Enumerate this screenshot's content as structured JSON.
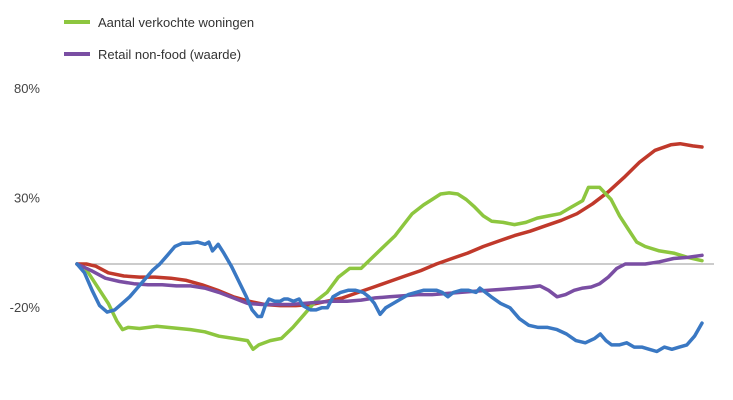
{
  "chart_data": {
    "type": "line",
    "title": "",
    "xlabel": "",
    "ylabel": "",
    "ylim": [
      -30,
      80
    ],
    "y_ticks": [
      {
        "value": 80,
        "label": "80%"
      },
      {
        "value": 30,
        "label": "30%"
      },
      {
        "value": -20,
        "label": "-20%"
      }
    ],
    "zero_line": true,
    "grid": false,
    "legend_position": "top-left",
    "x_count": 125,
    "series": [
      {
        "name": "",
        "color": "#c0392b",
        "legend_partial": true,
        "points": [
          [
            0,
            0
          ],
          [
            3,
            0
          ],
          [
            6,
            -1
          ],
          [
            10,
            -4
          ],
          [
            15,
            -5.5
          ],
          [
            20,
            -6
          ],
          [
            25,
            -6
          ],
          [
            30,
            -6.5
          ],
          [
            35,
            -7.5
          ],
          [
            40,
            -9.5
          ],
          [
            45,
            -12
          ],
          [
            50,
            -15
          ],
          [
            55,
            -17
          ],
          [
            60,
            -18.5
          ],
          [
            65,
            -19
          ],
          [
            70,
            -19
          ],
          [
            75,
            -18.5
          ],
          [
            80,
            -17
          ],
          [
            85,
            -15.5
          ],
          [
            90,
            -13
          ],
          [
            95,
            -10.5
          ],
          [
            100,
            -8
          ],
          [
            105,
            -5.5
          ],
          [
            110,
            -3
          ],
          [
            115,
            0
          ],
          [
            120,
            2.5
          ],
          [
            125,
            5
          ],
          [
            130,
            8
          ],
          [
            135,
            10.5
          ],
          [
            140,
            13
          ],
          [
            145,
            15
          ],
          [
            150,
            17.5
          ],
          [
            155,
            20
          ],
          [
            160,
            23
          ],
          [
            165,
            27.5
          ],
          [
            170,
            33
          ],
          [
            175,
            39.5
          ],
          [
            180,
            46.5
          ],
          [
            185,
            52
          ],
          [
            190,
            54.5
          ],
          [
            193,
            55
          ],
          [
            197,
            54
          ],
          [
            200,
            53.5
          ]
        ]
      },
      {
        "name": "Aantal verkochte woningen",
        "color": "#8dc63f",
        "points": [
          [
            0,
            0
          ],
          [
            3,
            -2
          ],
          [
            7,
            -10
          ],
          [
            11,
            -18
          ],
          [
            14,
            -26
          ],
          [
            16,
            -30
          ],
          [
            18,
            -29
          ],
          [
            22,
            -29.5
          ],
          [
            28,
            -28.5
          ],
          [
            32,
            -29
          ],
          [
            36,
            -29.5
          ],
          [
            40,
            -30
          ],
          [
            45,
            -31
          ],
          [
            50,
            -33
          ],
          [
            55,
            -34
          ],
          [
            60,
            -35
          ],
          [
            62,
            -39
          ],
          [
            64,
            -37
          ],
          [
            68,
            -35
          ],
          [
            72,
            -34
          ],
          [
            76,
            -29
          ],
          [
            80,
            -23
          ],
          [
            84,
            -17
          ],
          [
            88,
            -13
          ],
          [
            92,
            -6
          ],
          [
            96,
            -2
          ],
          [
            100,
            -2
          ],
          [
            104,
            3
          ],
          [
            108,
            8
          ],
          [
            112,
            13
          ],
          [
            115,
            18
          ],
          [
            118,
            23
          ],
          [
            122,
            27
          ],
          [
            125,
            29.5
          ],
          [
            128,
            32
          ],
          [
            131,
            32.5
          ],
          [
            134,
            32
          ],
          [
            137,
            29.5
          ],
          [
            140,
            26
          ],
          [
            143,
            22
          ],
          [
            146,
            19.5
          ],
          [
            150,
            19
          ],
          [
            154,
            18
          ],
          [
            158,
            19
          ],
          [
            162,
            21
          ],
          [
            166,
            22
          ],
          [
            170,
            23
          ],
          [
            174,
            26
          ],
          [
            178,
            29
          ],
          [
            180,
            35
          ],
          [
            184,
            35
          ],
          [
            188,
            29.5
          ],
          [
            191,
            22
          ],
          [
            194,
            16
          ],
          [
            197,
            10
          ],
          [
            200,
            8
          ],
          [
            205,
            6
          ],
          [
            210,
            5
          ],
          [
            215,
            3
          ],
          [
            220,
            1.5
          ]
        ]
      },
      {
        "name": "Retail non-food (waarde)",
        "color": "#7a4ea3",
        "points": [
          [
            0,
            0
          ],
          [
            5,
            -3
          ],
          [
            10,
            -6.5
          ],
          [
            15,
            -8
          ],
          [
            20,
            -9
          ],
          [
            25,
            -9.5
          ],
          [
            30,
            -9.5
          ],
          [
            35,
            -10
          ],
          [
            40,
            -10
          ],
          [
            45,
            -11
          ],
          [
            50,
            -13
          ],
          [
            55,
            -15.5
          ],
          [
            60,
            -18
          ],
          [
            65,
            -18.5
          ],
          [
            70,
            -18.5
          ],
          [
            75,
            -18.5
          ],
          [
            80,
            -18
          ],
          [
            85,
            -17.5
          ],
          [
            90,
            -17
          ],
          [
            95,
            -17
          ],
          [
            100,
            -16.5
          ],
          [
            105,
            -15.5
          ],
          [
            110,
            -15
          ],
          [
            115,
            -14.5
          ],
          [
            120,
            -14
          ],
          [
            125,
            -14
          ],
          [
            130,
            -13.5
          ],
          [
            135,
            -13
          ],
          [
            140,
            -12.5
          ],
          [
            145,
            -12
          ],
          [
            150,
            -11.5
          ],
          [
            155,
            -11
          ],
          [
            160,
            -10.5
          ],
          [
            163,
            -10
          ],
          [
            166,
            -12
          ],
          [
            169,
            -15
          ],
          [
            172,
            -14
          ],
          [
            175,
            -12
          ],
          [
            178,
            -11
          ],
          [
            181,
            -10.5
          ],
          [
            184,
            -9
          ],
          [
            187,
            -6
          ],
          [
            190,
            -2
          ],
          [
            193,
            0
          ],
          [
            196,
            0
          ],
          [
            200,
            0
          ],
          [
            205,
            1
          ],
          [
            210,
            2.5
          ],
          [
            215,
            3
          ],
          [
            220,
            4
          ]
        ]
      },
      {
        "name": "",
        "color": "#3a78c3",
        "points": [
          [
            0,
            0
          ],
          [
            4,
            -4
          ],
          [
            8,
            -12
          ],
          [
            12,
            -19
          ],
          [
            16,
            -22
          ],
          [
            20,
            -21
          ],
          [
            24,
            -18
          ],
          [
            28,
            -15
          ],
          [
            32,
            -11
          ],
          [
            36,
            -7
          ],
          [
            40,
            -3
          ],
          [
            44,
            0
          ],
          [
            48,
            4
          ],
          [
            52,
            8
          ],
          [
            56,
            9.5
          ],
          [
            60,
            9.5
          ],
          [
            64,
            10
          ],
          [
            68,
            9
          ],
          [
            70,
            10
          ],
          [
            72,
            6
          ],
          [
            75,
            9
          ],
          [
            78,
            5
          ],
          [
            82,
            -1
          ],
          [
            86,
            -8
          ],
          [
            90,
            -15
          ],
          [
            93,
            -21
          ],
          [
            96,
            -24
          ],
          [
            98,
            -24
          ],
          [
            100,
            -19
          ],
          [
            102,
            -16
          ],
          [
            105,
            -17
          ],
          [
            108,
            -17
          ],
          [
            110,
            -16
          ],
          [
            112,
            -16
          ],
          [
            115,
            -17
          ],
          [
            118,
            -16
          ],
          [
            120,
            -19
          ],
          [
            124,
            -21
          ],
          [
            127,
            -21
          ],
          [
            130,
            -20
          ],
          [
            133,
            -20
          ],
          [
            136,
            -15
          ],
          [
            140,
            -13
          ],
          [
            144,
            -12
          ],
          [
            148,
            -12
          ],
          [
            152,
            -13
          ],
          [
            155,
            -15
          ],
          [
            158,
            -18
          ],
          [
            161,
            -23
          ],
          [
            164,
            -20
          ],
          [
            168,
            -18
          ],
          [
            172,
            -16
          ],
          [
            176,
            -14
          ],
          [
            180,
            -13
          ],
          [
            184,
            -12
          ],
          [
            188,
            -12
          ],
          [
            191,
            -12
          ],
          [
            194,
            -13
          ],
          [
            197,
            -15
          ],
          [
            200,
            -13
          ],
          [
            204,
            -12
          ],
          [
            208,
            -12
          ],
          [
            212,
            -13
          ],
          [
            214,
            -11
          ],
          [
            217,
            -13
          ],
          [
            220,
            -15
          ],
          [
            225,
            -18
          ],
          [
            230,
            -20
          ],
          [
            235,
            -25
          ],
          [
            240,
            -28
          ],
          [
            245,
            -29
          ],
          [
            250,
            -29
          ],
          [
            255,
            -30
          ],
          [
            260,
            -32
          ],
          [
            265,
            -35
          ],
          [
            270,
            -36
          ],
          [
            275,
            -34
          ],
          [
            278,
            -32
          ],
          [
            281,
            -35
          ],
          [
            284,
            -37
          ],
          [
            288,
            -37
          ],
          [
            292,
            -36
          ],
          [
            296,
            -38
          ],
          [
            300,
            -38
          ],
          [
            304,
            -39
          ],
          [
            308,
            -40
          ],
          [
            312,
            -38
          ],
          [
            316,
            -39
          ],
          [
            320,
            -38
          ],
          [
            324,
            -37
          ],
          [
            328,
            -33
          ],
          [
            332,
            -27
          ]
        ]
      }
    ]
  }
}
